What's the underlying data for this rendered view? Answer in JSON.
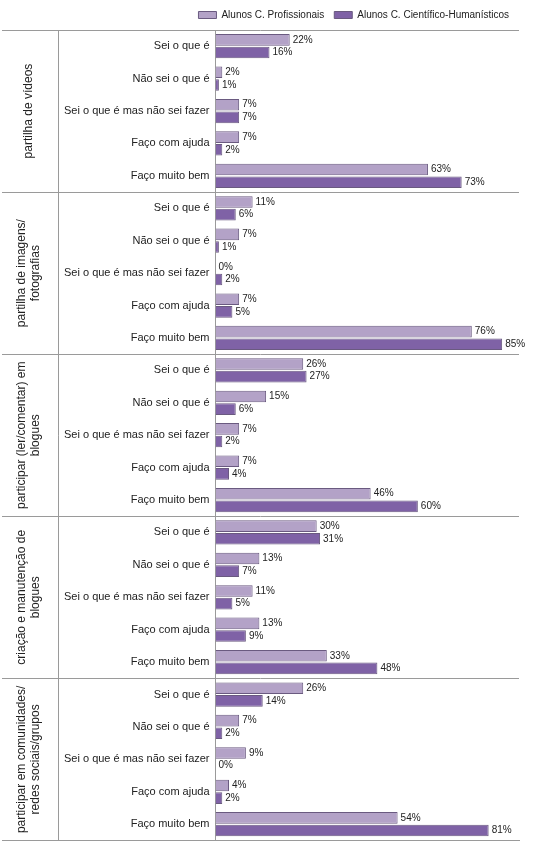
{
  "chart_data": {
    "type": "bar",
    "orientation": "horizontal",
    "legend": "top",
    "data_labels": true,
    "tick_labels": "y",
    "grid": false,
    "xlim": [
      0,
      90
    ],
    "xticks": [],
    "category_groups": [
      "partilha de vídeos",
      "partilha de imagens/fotografias",
      "participar (ler/comentar) em blogues",
      "criação e manutenção de blogues",
      "participar em comunidades/redes sociais/grupos"
    ],
    "categories": [
      "Sei o que é",
      "Não sei o que é",
      "Sei o que é mas não sei fazer",
      "Faço com ajuda",
      "Faço muito bem",
      "Sei o que é",
      "Não sei o que é",
      "Sei o que é mas não sei fazer",
      "Faço com ajuda",
      "Faço muito bem",
      "Sei o que é",
      "Não sei o que é",
      "Sei o que é mas não sei fazer",
      "Faço com ajuda",
      "Faço muito bem",
      "Sei o que é",
      "Não sei o que é",
      "Sei o que é mas não sei fazer",
      "Faço com ajuda",
      "Faço muito bem",
      "Sei o que é",
      "Não sei o que é",
      "Sei o que é mas não sei fazer",
      "Faço com ajuda",
      "Faço muito bem"
    ],
    "series": [
      {
        "name": "Alunos C. Profissionais",
        "color": "#b3a2c7",
        "values": [
          22,
          2,
          7,
          7,
          63,
          11,
          7,
          0,
          7,
          76,
          26,
          15,
          7,
          7,
          46,
          30,
          13,
          11,
          13,
          33,
          26,
          7,
          9,
          4,
          54
        ],
        "value_labels": [
          "22%",
          "2%",
          "7%",
          "7%",
          "63%",
          "11%",
          "7%",
          "0%",
          "7%",
          "76%",
          "26%",
          "15%",
          "7%",
          "7%",
          "46%",
          "30%",
          "13%",
          "11%",
          "13%",
          "33%",
          "26%",
          "7%",
          "9%",
          "4%",
          "54%"
        ]
      },
      {
        "name": "Alunos C. Científico-Humanísticos",
        "color": "#7f62a6",
        "values": [
          16,
          1,
          7,
          2,
          73,
          6,
          1,
          2,
          5,
          85,
          27,
          6,
          2,
          4,
          60,
          31,
          7,
          5,
          9,
          48,
          14,
          2,
          0,
          2,
          81
        ],
        "value_labels": [
          "16%",
          "1%",
          "7%",
          "2%",
          "73%",
          "6%",
          "1%",
          "2%",
          "5%",
          "85%",
          "27%",
          "6%",
          "2%",
          "4%",
          "60%",
          "31%",
          "7%",
          "5%",
          "9%",
          "48%",
          "14%",
          "2%",
          "0%",
          "2%",
          "81%"
        ]
      }
    ]
  }
}
